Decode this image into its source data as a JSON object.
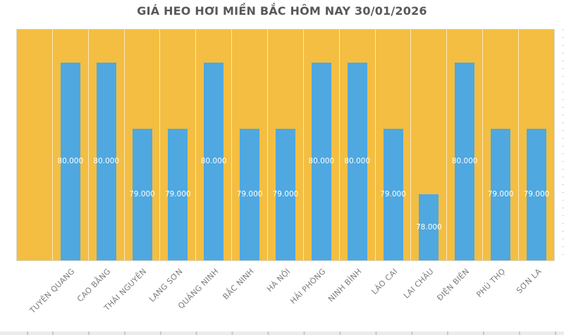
{
  "chart_data": {
    "type": "bar",
    "title": "GIÁ HEO HƠI MIỀN BẮC HÔM NAY 30/01/2026",
    "categories": [
      "TUYÊN QUANG",
      "CAO BẰNG",
      "THÁI NGUYÊN",
      "LẠNG SƠN",
      "QUẢNG NINH",
      "BẮC NINH",
      "HÀ NỘI",
      "HẢI PHÒNG",
      "NINH BÌNH",
      "LÀO CAI",
      "LAI CHÂU",
      "ĐIỆN BIÊN",
      "PHÚ THỌ",
      "SƠN LA"
    ],
    "category_ids": [
      "tuyen-quang",
      "cao-bang",
      "thai-nguyen",
      "lang-son",
      "quang-ninh",
      "bac-ninh",
      "ha-noi",
      "hai-phong",
      "ninh-binh",
      "lao-cai",
      "lai-chau",
      "dien-bien",
      "phu-tho",
      "son-la"
    ],
    "values": [
      80000,
      80000,
      79000,
      79000,
      80000,
      79000,
      79000,
      80000,
      80000,
      79000,
      78000,
      80000,
      79000,
      79000
    ],
    "value_labels": [
      "80.000",
      "80.000",
      "79.000",
      "79.000",
      "80.000",
      "79.000",
      "79.000",
      "80.000",
      "80.000",
      "79.000",
      "78.000",
      "80.000",
      "79.000",
      "79.000"
    ],
    "xlabel": "",
    "ylabel": "",
    "ylim": [
      77000,
      80500
    ],
    "leading_empty_slots": 1,
    "grid": "vertical category dividers only, no visible y-axis labels",
    "legend": "none",
    "value_label_position": "centered inside bar",
    "colors": {
      "plot_background": "#F3BE41",
      "bar": "#4FA8E0",
      "bar_label": "#FFFFFF",
      "axis_label": "#7C7C7C",
      "title": "#595959",
      "gridline": "rgba(255,255,255,0.65)"
    }
  }
}
